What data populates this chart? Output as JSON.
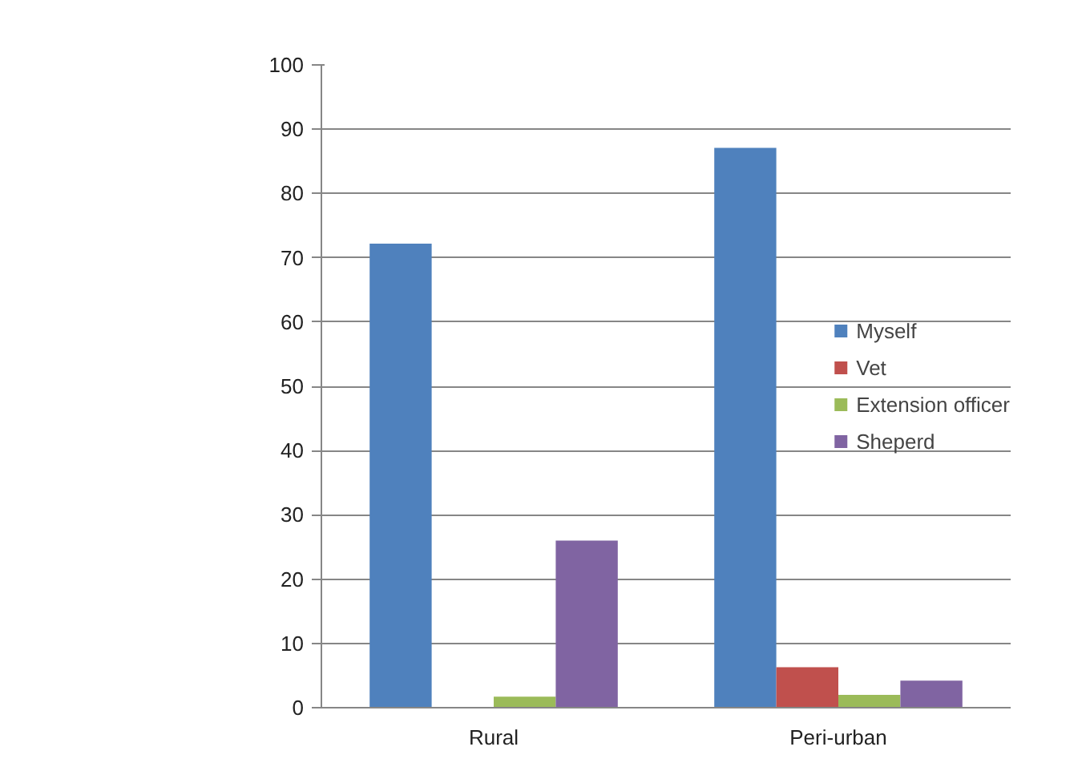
{
  "chart_data": {
    "type": "bar",
    "categories": [
      "Rural",
      "Peri-urban"
    ],
    "series": [
      {
        "name": "Myself",
        "color": "#4f81bd",
        "values": [
          72.2,
          87.1
        ]
      },
      {
        "name": "Vet",
        "color": "#c0504d",
        "values": [
          0,
          6.3
        ]
      },
      {
        "name": "Extension officer",
        "color": "#9bbb59",
        "values": [
          1.7,
          2
        ]
      },
      {
        "name": "Sheperd",
        "color": "#8064a2",
        "values": [
          26,
          4.2
        ]
      }
    ],
    "ylim": [
      0,
      100
    ],
    "yticks": [
      0,
      10,
      20,
      30,
      40,
      50,
      60,
      70,
      80,
      90,
      100
    ],
    "grid": "y",
    "legend": "right"
  }
}
